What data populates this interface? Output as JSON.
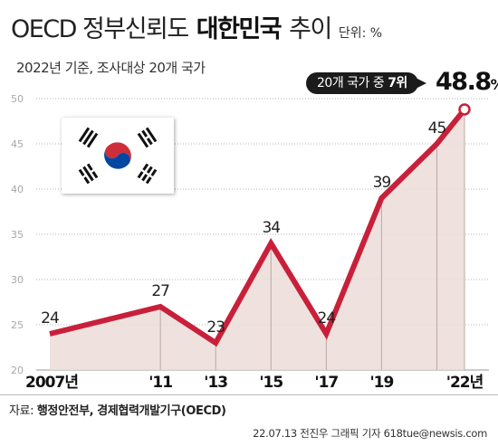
{
  "header": {
    "title_part1": "OECD 정부신뢰도",
    "title_highlight": "대한민국",
    "title_part2": "추이",
    "unit": "단위: %",
    "subtitle": "2022년 기준, 조사대상 20개 국가"
  },
  "callout": {
    "prefix": "20개 국가 중 ",
    "rank": "7위",
    "value": "48.8",
    "unit": "%"
  },
  "flag": {
    "name": "korea-flag-icon"
  },
  "colors": {
    "line": "#c8203a",
    "area": "#ecdcd8",
    "point_fill": "#ffffff",
    "axis_text": "#a8a8a8"
  },
  "chart_data": {
    "type": "line",
    "title": "OECD 정부신뢰도 대한민국 추이",
    "x": [
      2007,
      2011,
      2013,
      2015,
      2017,
      2019,
      2021,
      2022
    ],
    "x_tick_labels": [
      "2007년",
      "'11",
      "'13",
      "'15",
      "'17",
      "'19",
      "'22년"
    ],
    "x_tick_positions": [
      2007,
      2011,
      2013,
      2015,
      2017,
      2019,
      2022
    ],
    "series": [
      {
        "values": [
          24,
          27,
          23,
          34,
          24,
          39,
          45,
          48.8
        ]
      }
    ],
    "data_labels": [
      "24",
      "27",
      "23",
      "34",
      "24",
      "39",
      "45",
      ""
    ],
    "ylim": [
      20,
      50
    ],
    "y_ticks": [
      20,
      25,
      30,
      35,
      40,
      45,
      50
    ],
    "grid": "horizontal dotted"
  },
  "footer": {
    "source_label": "자료: ",
    "source_text": "행정안전부, 경제협력개발기구(OECD)",
    "credit": "22.07.13 전진우 그래픽 기자 618tue@newsis.com"
  }
}
